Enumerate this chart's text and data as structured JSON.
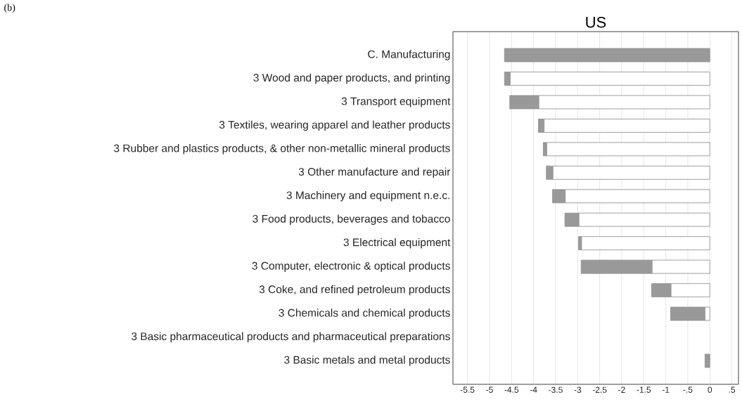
{
  "chart_data": {
    "type": "bar",
    "orientation": "horizontal",
    "stacked": true,
    "title": "US",
    "annotations": [
      "(b)"
    ],
    "categories": [
      "C. Manufacturing",
      "3 Wood and paper products, and printing",
      "3 Transport equipment",
      "3 Textiles, wearing apparel and leather products",
      "3 Rubber and plastics products, & other non-metallic mineral products",
      "3 Other manufacture and repair",
      "3 Machinery and equipment n.e.c.",
      "3 Food products, beverages and tobacco",
      "3 Electrical equipment",
      "3 Computer, electronic & optical products",
      "3 Coke, and refined petroleum products",
      "3 Chemicals and chemical products",
      "3 Basic pharmaceutical products and pharmaceutical preparations",
      "3 Basic metals and metal products"
    ],
    "series": [
      {
        "color": "#ffffff",
        "values": [
          0,
          -4.53,
          -3.88,
          -3.76,
          -3.7,
          -3.56,
          -3.28,
          -2.97,
          -2.91,
          -1.31,
          -0.88,
          -0.11,
          null,
          0
        ]
      },
      {
        "color": "#999999",
        "values": [
          -4.66,
          -0.13,
          -0.66,
          -0.13,
          -0.08,
          -0.15,
          -0.29,
          -0.32,
          -0.07,
          -1.61,
          -0.44,
          -0.78,
          null,
          -0.11
        ]
      }
    ],
    "xlim": [
      -5.83,
      0.65
    ],
    "xticks": [
      -5.5,
      -5,
      -4.5,
      -4,
      -3.5,
      -3,
      -2.5,
      -2,
      -1.5,
      -1,
      {
        "value": -0.5,
        "label": "-.5"
      },
      0,
      {
        "value": 0.5,
        "label": ".5"
      }
    ],
    "grid": "x"
  }
}
